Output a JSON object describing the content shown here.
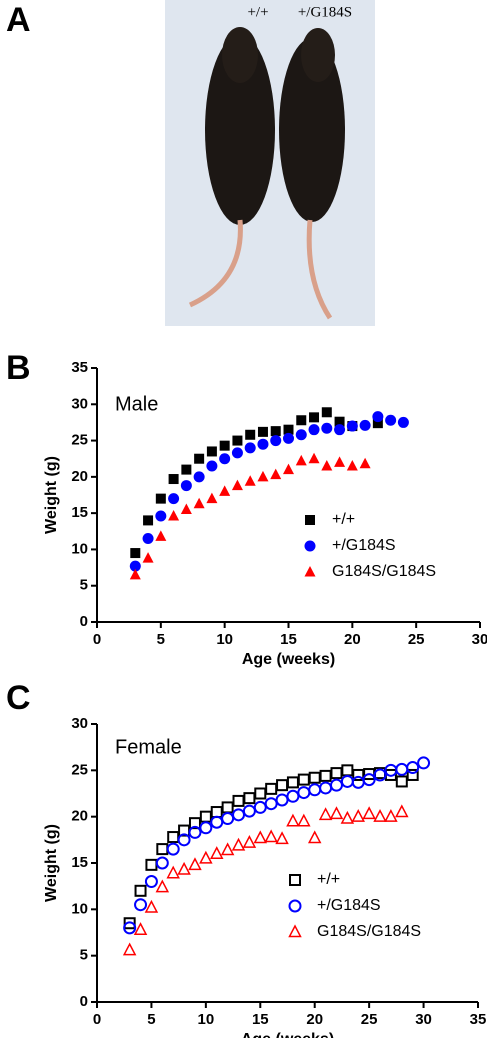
{
  "photo": {
    "panel_label": "A",
    "labels": [
      "+/+",
      "+/G184S"
    ]
  },
  "chart_data": [
    {
      "type": "scatter",
      "panel_label": "B",
      "annotation": "Male",
      "x_label": "Age (weeks)",
      "y_label": "Weight (g)",
      "xlim": [
        0,
        30
      ],
      "xticks": [
        0,
        5,
        10,
        15,
        20,
        25,
        30
      ],
      "ylim": [
        0,
        35
      ],
      "yticks": [
        0,
        5,
        10,
        15,
        20,
        25,
        30,
        35
      ],
      "legend": "lower right",
      "series": [
        {
          "name": "+/+",
          "color": "#000000",
          "marker": "square",
          "filled": true,
          "x": [
            3,
            4,
            5,
            6,
            7,
            8,
            9,
            10,
            11,
            12,
            13,
            14,
            15,
            16,
            17,
            18,
            19,
            20,
            22
          ],
          "values": [
            9.5,
            14,
            17,
            19.7,
            21,
            22.5,
            23.5,
            24.3,
            25,
            25.8,
            26.2,
            26.3,
            26.5,
            27.8,
            28.2,
            28.9,
            27.6,
            27,
            27.4
          ]
        },
        {
          "name": "+/G184S",
          "color": "#0000ff",
          "marker": "circle",
          "filled": true,
          "x": [
            3,
            4,
            5,
            6,
            7,
            8,
            9,
            10,
            11,
            12,
            13,
            14,
            15,
            16,
            17,
            18,
            19,
            20,
            21,
            22,
            23,
            24
          ],
          "values": [
            7.7,
            11.5,
            14.6,
            17,
            18.8,
            20,
            21.5,
            22.5,
            23.3,
            24,
            24.5,
            25,
            25.3,
            25.8,
            26.5,
            26.7,
            26.5,
            27,
            27.1,
            28.3,
            27.8,
            27.5
          ]
        },
        {
          "name": "G184S/G184S",
          "color": "#ff0000",
          "marker": "triangle",
          "filled": true,
          "x": [
            3,
            4,
            5,
            6,
            7,
            8,
            9,
            10,
            11,
            12,
            13,
            14,
            15,
            16,
            17,
            18,
            19,
            20,
            21
          ],
          "values": [
            6.5,
            8.8,
            11.8,
            14.6,
            15.5,
            16.3,
            17,
            18,
            18.8,
            19.4,
            20,
            20.3,
            21,
            22.2,
            22.5,
            21.5,
            22,
            21.5,
            21.8
          ]
        }
      ]
    },
    {
      "type": "scatter",
      "panel_label": "C",
      "annotation": "Female",
      "x_label": "Age (weeks)",
      "y_label": "Weight (g)",
      "xlim": [
        0,
        35
      ],
      "xticks": [
        0,
        5,
        10,
        15,
        20,
        25,
        30,
        35
      ],
      "ylim": [
        0,
        30
      ],
      "yticks": [
        0,
        5,
        10,
        15,
        20,
        25,
        30
      ],
      "legend": "lower right",
      "series": [
        {
          "name": "+/+",
          "color": "#000000",
          "marker": "square",
          "filled": false,
          "x": [
            3,
            4,
            5,
            6,
            7,
            8,
            9,
            10,
            11,
            12,
            13,
            14,
            15,
            16,
            17,
            18,
            19,
            20,
            21,
            22,
            23,
            24,
            25,
            26,
            27,
            28,
            29
          ],
          "values": [
            8.5,
            12,
            14.8,
            16.5,
            17.8,
            18.5,
            19.3,
            20,
            20.5,
            21,
            21.7,
            22,
            22.5,
            23,
            23.4,
            23.7,
            24,
            24.2,
            24.4,
            24.7,
            25,
            24.5,
            24.6,
            24.7,
            24.5,
            23.8,
            24.5
          ]
        },
        {
          "name": "+/G184S",
          "color": "#0000ff",
          "marker": "circle",
          "filled": false,
          "x": [
            3,
            4,
            5,
            6,
            7,
            8,
            9,
            10,
            11,
            12,
            13,
            14,
            15,
            16,
            17,
            18,
            19,
            20,
            21,
            22,
            23,
            24,
            25,
            26,
            27,
            28,
            29,
            30
          ],
          "values": [
            8,
            10.5,
            13,
            15,
            16.5,
            17.5,
            18.3,
            18.8,
            19.4,
            19.8,
            20.2,
            20.6,
            21,
            21.4,
            21.8,
            22.2,
            22.6,
            22.9,
            23.1,
            23.4,
            23.8,
            23.7,
            24,
            24.5,
            25,
            25.1,
            25.3,
            25.8
          ]
        },
        {
          "name": "G184S/G184S",
          "color": "#ff0000",
          "marker": "triangle",
          "filled": false,
          "x": [
            3,
            4,
            5,
            6,
            7,
            8,
            9,
            10,
            11,
            12,
            13,
            14,
            15,
            16,
            17,
            18,
            19,
            20,
            21,
            22,
            23,
            24,
            25,
            26,
            27,
            28
          ],
          "values": [
            5.6,
            7.8,
            10.2,
            12.4,
            13.9,
            14.3,
            14.8,
            15.5,
            16,
            16.4,
            16.9,
            17.2,
            17.7,
            17.8,
            17.6,
            19.5,
            19.5,
            17.7,
            20.2,
            20.3,
            19.8,
            20,
            20.3,
            20,
            20,
            20.5
          ]
        }
      ]
    }
  ]
}
